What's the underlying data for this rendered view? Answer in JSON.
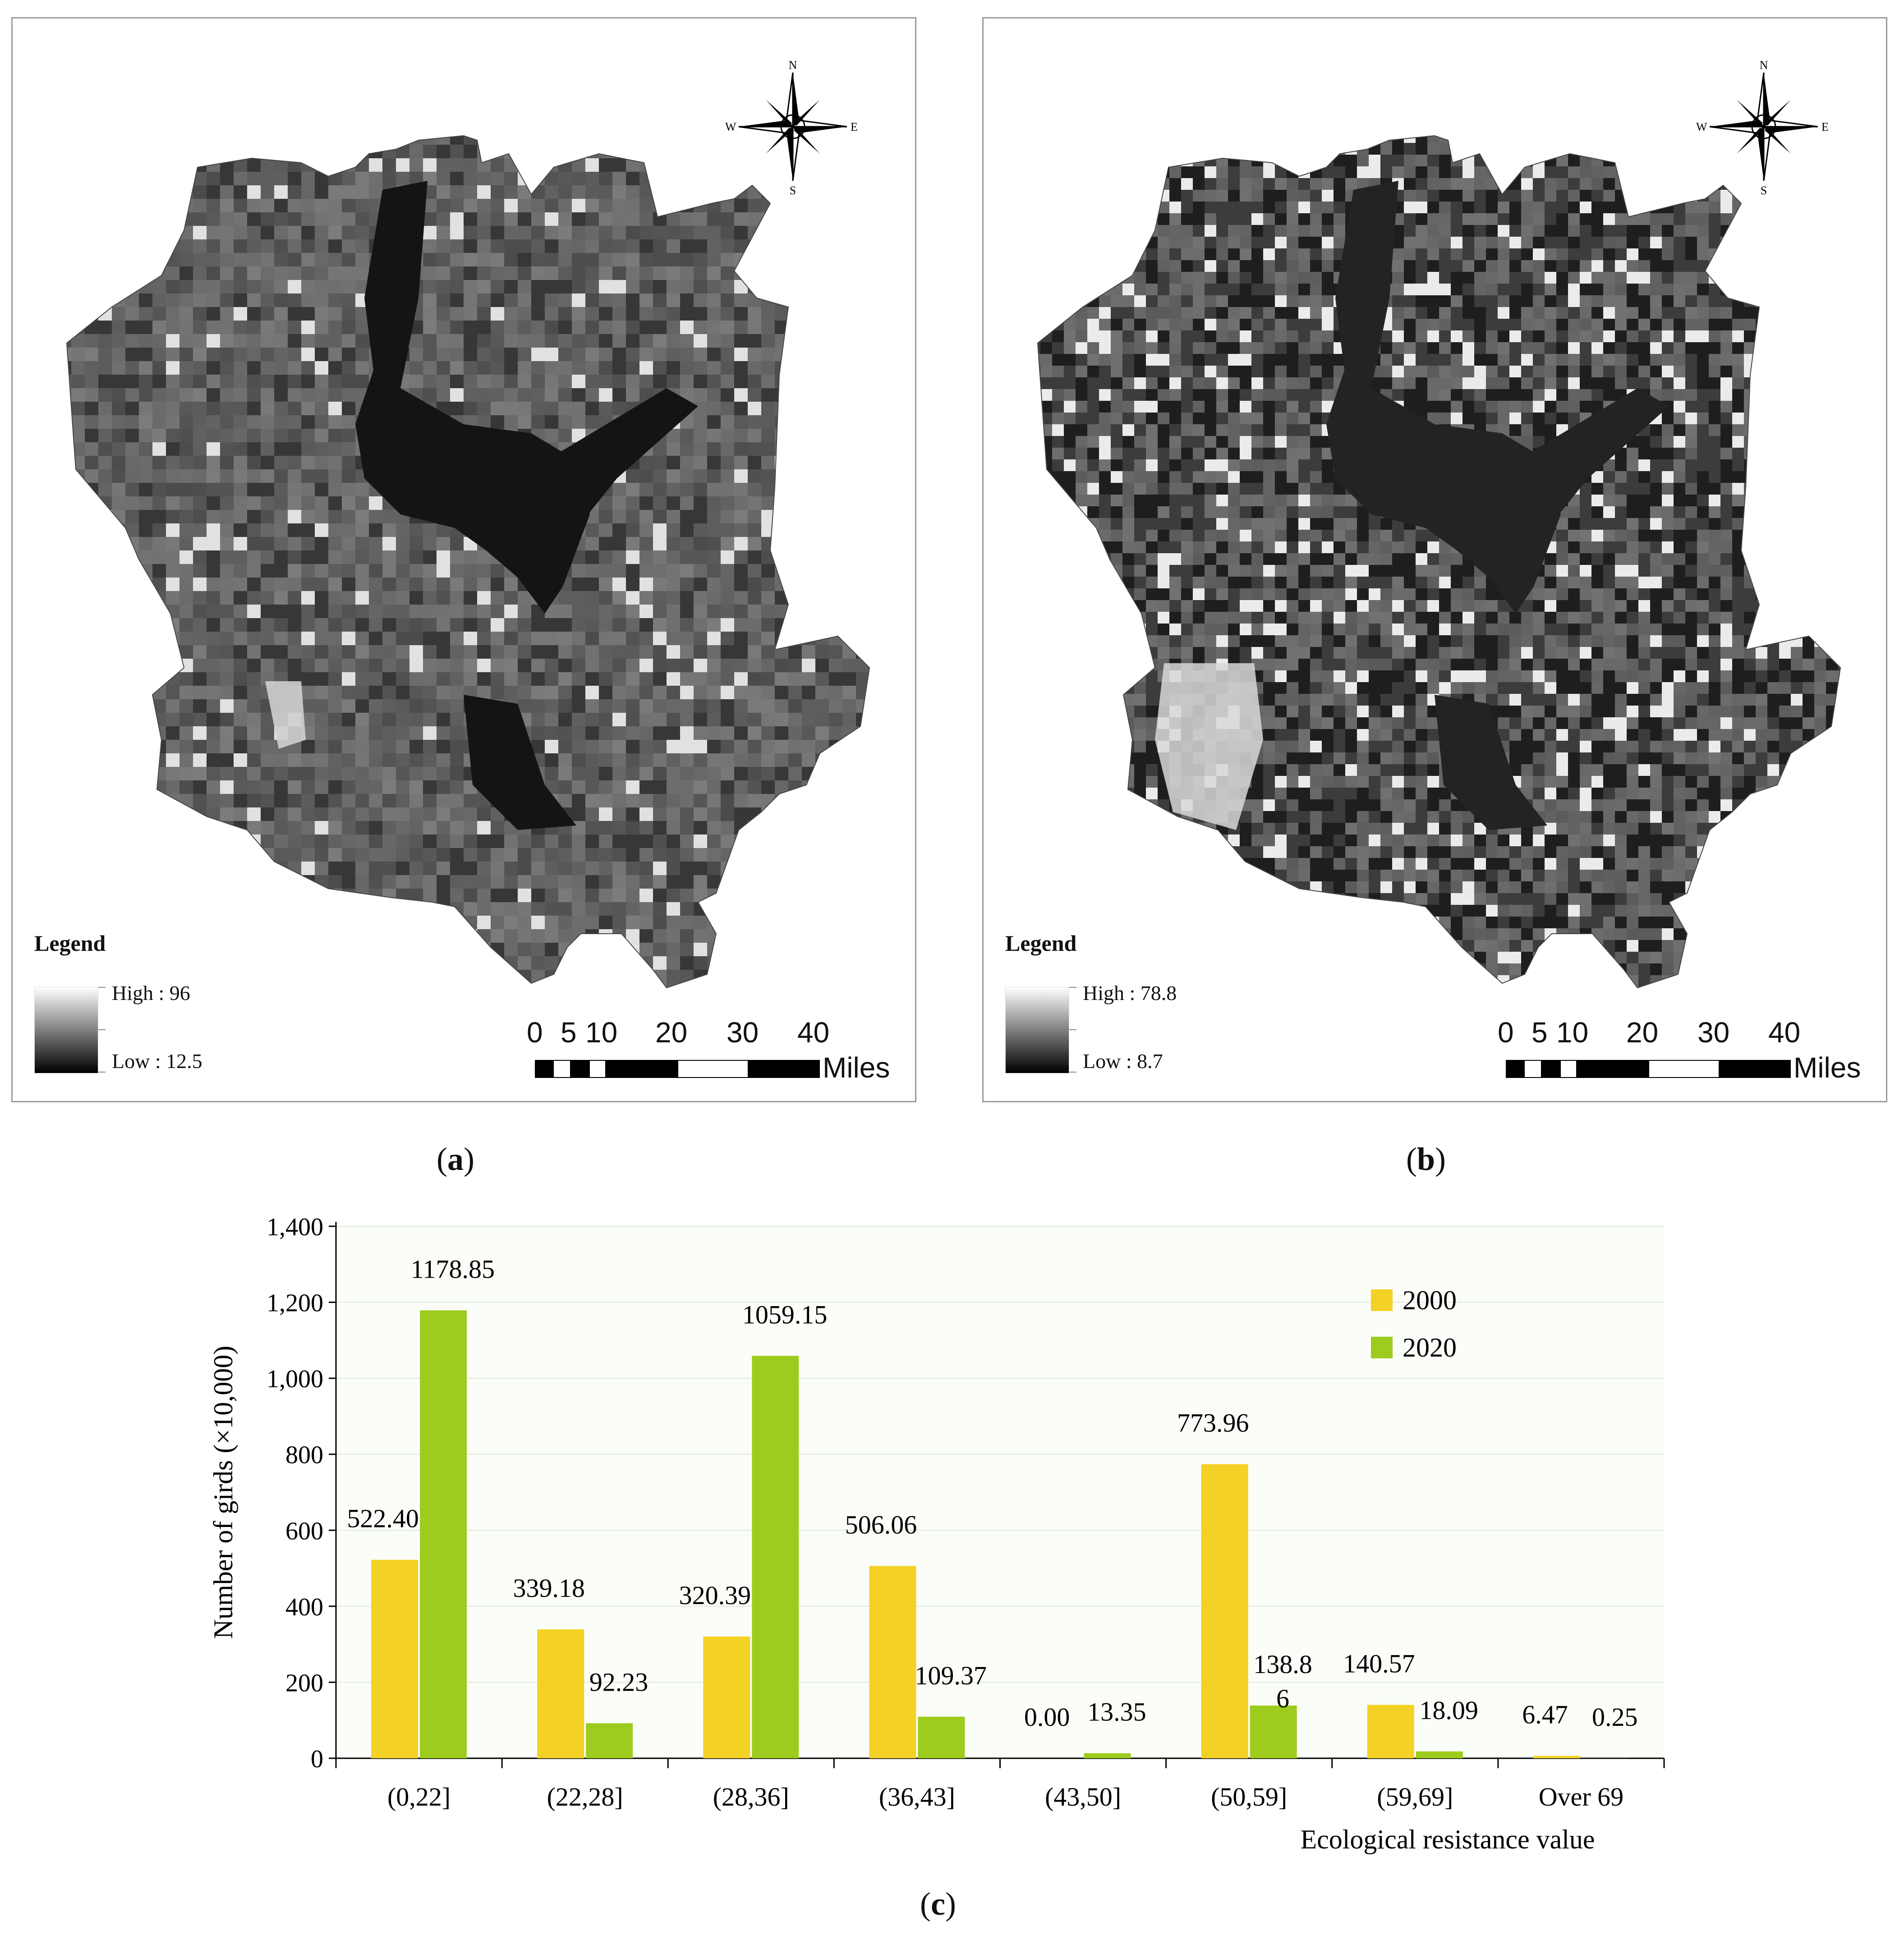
{
  "panels": [
    {
      "id": "a",
      "caption": "a",
      "legend": {
        "title": "Legend",
        "high": "High : 96",
        "low": "Low : 12.5"
      },
      "scale": {
        "ticks": [
          "0",
          "5",
          "10",
          "20",
          "30",
          "40"
        ],
        "unit": "Miles"
      },
      "compass": {
        "n": "N",
        "s": "S",
        "e": "E",
        "w": "W"
      }
    },
    {
      "id": "b",
      "caption": "b",
      "legend": {
        "title": "Legend",
        "high": "High : 78.8",
        "low": "Low : 8.7"
      },
      "scale": {
        "ticks": [
          "0",
          "5",
          "10",
          "20",
          "30",
          "40"
        ],
        "unit": "Miles"
      },
      "compass": {
        "n": "N",
        "s": "S",
        "e": "E",
        "w": "W"
      }
    }
  ],
  "chart_caption": "c",
  "chart_data": {
    "type": "bar",
    "categories": [
      "(0,22]",
      "(22,28]",
      "(28,36]",
      "(36,43]",
      "(43,50]",
      "(50,59]",
      "(59,69]",
      "Over 69"
    ],
    "series": [
      {
        "name": "2000",
        "color": "#f4d125",
        "values": [
          522.4,
          339.18,
          320.39,
          506.06,
          0.0,
          773.96,
          140.57,
          6.47
        ],
        "labels": [
          "522.40",
          "339.18",
          "320.39",
          "506.06",
          "0.00",
          "773.96",
          "140.57",
          "6.47"
        ]
      },
      {
        "name": "2020",
        "color": "#9dcc1e",
        "values": [
          1178.85,
          92.23,
          1059.15,
          109.37,
          13.35,
          138.86,
          18.09,
          0.25
        ],
        "labels": [
          "1178.85",
          "92.23",
          "1059.15",
          "109.37",
          "13.35",
          "138.8\n6",
          "18.09",
          "0.25"
        ]
      }
    ],
    "ylabel": "Number of girds (×10,000)",
    "xlabel": "Ecological resistance value",
    "ylim": [
      0,
      1400
    ],
    "yticks": [
      "0",
      "200",
      "400",
      "600",
      "800",
      "1,000",
      "1,200",
      "1,400"
    ],
    "grid": true,
    "legend_position": "top-right"
  }
}
